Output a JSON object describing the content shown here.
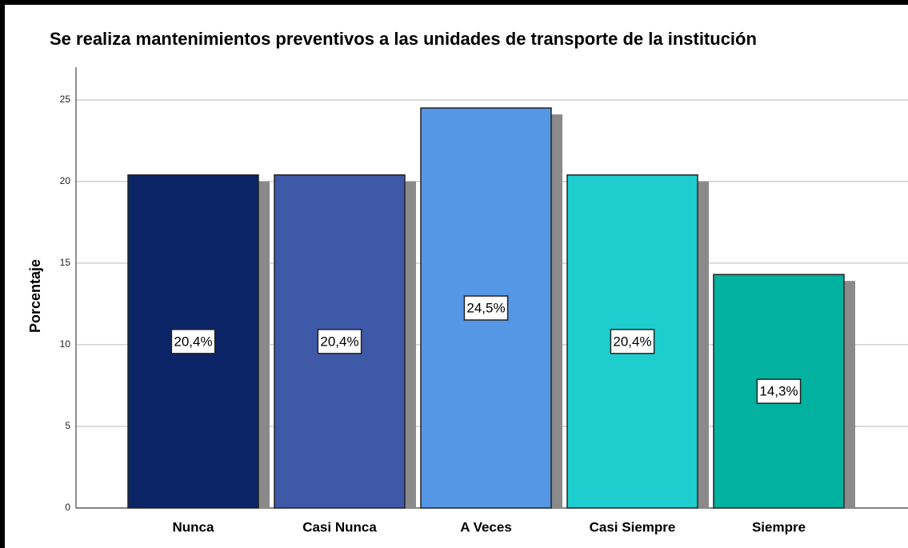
{
  "chart_data": {
    "type": "bar",
    "title": "Se realiza mantenimientos preventivos a las unidades de transporte de la institución",
    "y_label": "Porcentaje",
    "categories": [
      "Nunca",
      "Casi Nunca",
      "A Veces",
      "Casi Siempre",
      "Siempre"
    ],
    "values": [
      20.4,
      20.4,
      24.5,
      20.4,
      14.3
    ],
    "value_labels": [
      "20,4%",
      "20,4%",
      "24,5%",
      "20,4%",
      "14,3%"
    ],
    "colors": [
      "#0b2466",
      "#3d59a8",
      "#5597e4",
      "#1ecece",
      "#02b19f"
    ],
    "ylim": [
      0,
      27
    ],
    "yticks": [
      0,
      5,
      10,
      15,
      20,
      25
    ],
    "grid": true
  }
}
